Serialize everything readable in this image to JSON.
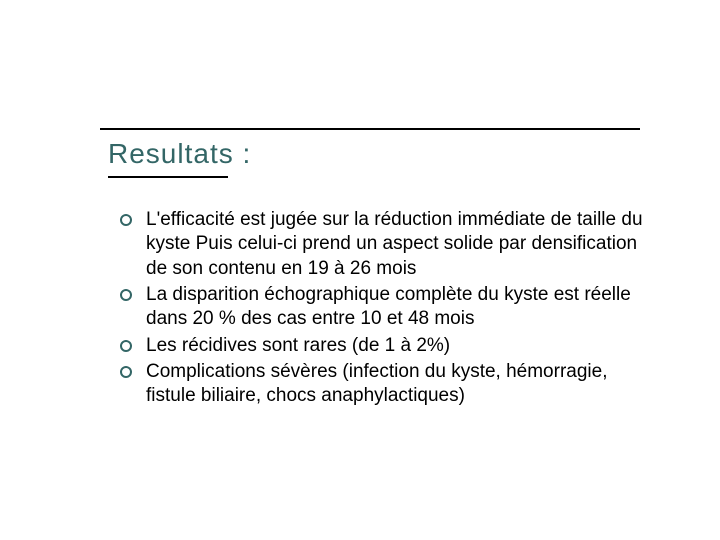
{
  "title": "Resultats :",
  "title_color": "#336666",
  "title_fontsize": 28,
  "rule_color": "#000000",
  "rule_top_width": 540,
  "rule_bottom_width": 120,
  "bullet_marker_color": "#336666",
  "body_fontsize": 19,
  "body_color": "#000000",
  "background_color": "#ffffff",
  "bullets": [
    "L'efficacité est jugée sur la réduction immédiate de taille du kyste Puis celui-ci prend un aspect solide par densification de son contenu en 19 à 26 mois",
    "La disparition échographique complète du kyste est réelle dans 20 % des cas entre 10 et 48 mois",
    "Les récidives sont rares (de 1 à 2%)",
    "Complications sévères (infection du kyste, hémorragie, fistule biliaire, chocs anaphylactiques)"
  ]
}
